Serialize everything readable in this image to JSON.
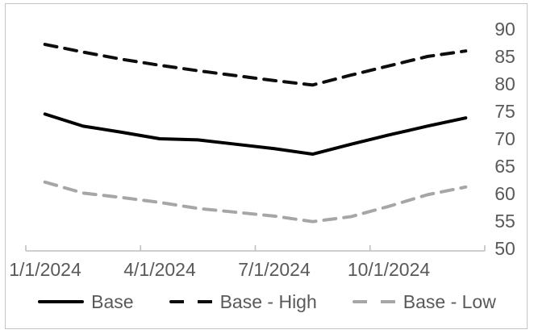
{
  "chart_data": {
    "type": "line",
    "title": "",
    "xlabel": "",
    "ylabel": "",
    "x": [
      "1/1/2024",
      "2/1/2024",
      "3/1/2024",
      "4/1/2024",
      "5/1/2024",
      "6/1/2024",
      "7/1/2024",
      "8/1/2024",
      "9/1/2024",
      "10/1/2024",
      "11/1/2024",
      "12/1/2024"
    ],
    "x_tick_labels": [
      "1/1/2024",
      "4/1/2024",
      "7/1/2024",
      "10/1/2024"
    ],
    "series": [
      {
        "name": "Base",
        "style": "solid",
        "color": "#000000",
        "values": [
          74.5,
          72.3,
          71.2,
          70.0,
          69.8,
          69.0,
          68.2,
          67.2,
          69.0,
          70.7,
          72.3,
          73.8
        ]
      },
      {
        "name": "Base - High",
        "style": "dashed",
        "color": "#0d0d0d",
        "values": [
          87.2,
          85.8,
          84.5,
          83.4,
          82.4,
          81.5,
          80.6,
          79.8,
          81.6,
          83.3,
          85.0,
          86.0
        ]
      },
      {
        "name": "Base - Low",
        "style": "dashed",
        "color": "#a6a6a6",
        "values": [
          62.1,
          60.1,
          59.3,
          58.4,
          57.3,
          56.6,
          55.9,
          54.9,
          55.8,
          57.7,
          59.8,
          61.2
        ]
      }
    ],
    "ylim": [
      50,
      90
    ],
    "y_ticks": [
      90,
      85,
      80,
      75,
      70,
      65,
      60,
      55,
      50
    ],
    "y_axis_side": "right",
    "x_tick_interval_months": 3,
    "grid": false,
    "legend_position": "bottom",
    "axis_color": "#bfbfbf",
    "label_color": "#595959"
  },
  "legend": {
    "items": [
      {
        "label": "Base"
      },
      {
        "label": "Base - High"
      },
      {
        "label": "Base - Low"
      }
    ]
  }
}
